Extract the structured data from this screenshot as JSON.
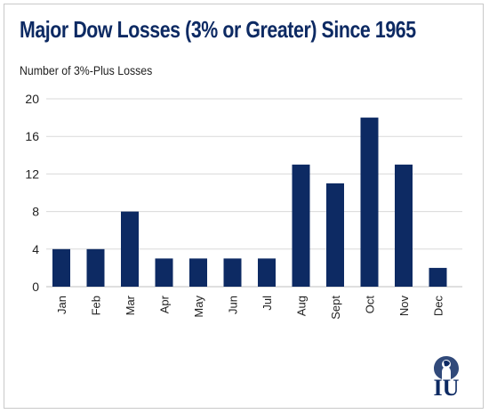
{
  "chart_data": {
    "type": "bar",
    "title": "Major Dow Losses (3% or Greater) Since 1965",
    "ylabel": "Number of 3%-Plus Losses",
    "xlabel": "",
    "categories": [
      "Jan",
      "Feb",
      "Mar",
      "Apr",
      "May",
      "Jun",
      "Jul",
      "Aug",
      "Sept",
      "Oct",
      "Nov",
      "Dec"
    ],
    "values": [
      4,
      4,
      8,
      3,
      3,
      3,
      3,
      13,
      11,
      18,
      13,
      2
    ],
    "ylim": [
      0,
      20
    ],
    "yticks": [
      0,
      4,
      8,
      12,
      16,
      20
    ],
    "grid": true,
    "bar_color": "#0d2a63",
    "grid_color": "#d9d9d9"
  },
  "logo": {
    "text": "IU",
    "icon": "lion-crest-icon",
    "color": "#0d2a63"
  }
}
